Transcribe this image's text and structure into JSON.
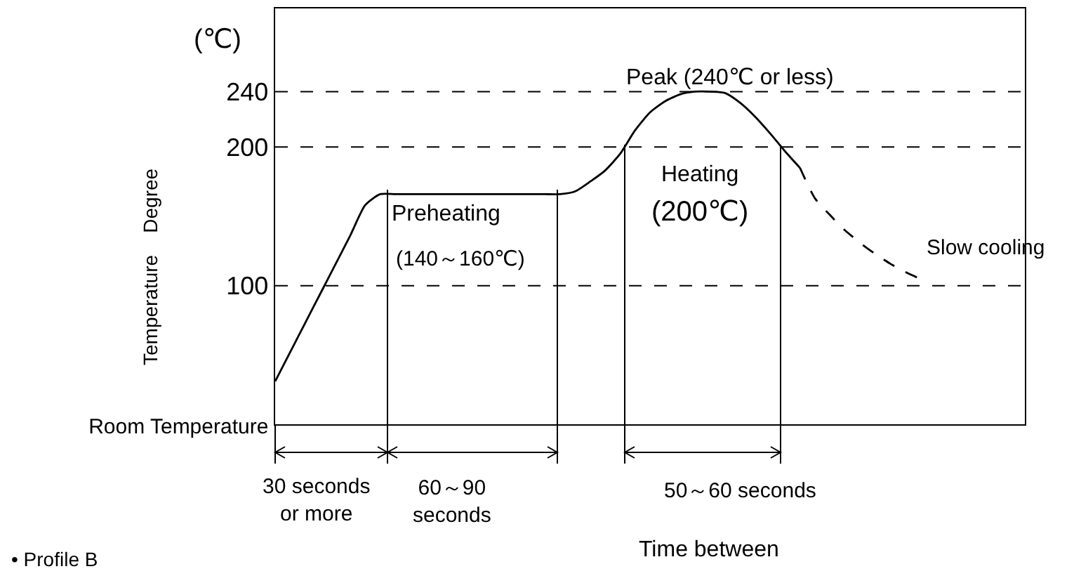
{
  "chart_data": {
    "type": "line",
    "ylabel": "Temperature  Degree",
    "xlabel": "Time between",
    "categories": [
      null,
      null,
      null,
      null,
      null,
      null,
      null,
      null,
      null,
      null,
      null,
      null,
      null,
      null,
      null,
      null,
      null,
      null,
      null,
      null,
      null,
      null,
      null,
      null,
      null,
      null,
      null,
      null,
      null,
      null,
      null,
      null,
      null,
      null,
      null,
      null,
      null,
      null,
      null,
      null,
      null,
      null,
      null,
      null,
      null,
      null,
      null,
      null,
      null,
      null,
      null
    ],
    "series": [
      {
        "color": "#000000",
        "line_style": "solid",
        "values": [
          31,
          52,
          73,
          94,
          115,
          136,
          158,
          166,
          166,
          166,
          166,
          166,
          166,
          166,
          166,
          166,
          166,
          166,
          166,
          166,
          168,
          175,
          183,
          195,
          212,
          225,
          233,
          238,
          240,
          240,
          239,
          232,
          222,
          210,
          197,
          185,
          null,
          null,
          null,
          null,
          null,
          null,
          null,
          null,
          null,
          null,
          null,
          null,
          null,
          null,
          null
        ]
      },
      {
        "color": "#000000",
        "line_style": "dashed",
        "values": [
          null,
          null,
          null,
          null,
          null,
          null,
          null,
          null,
          null,
          null,
          null,
          null,
          null,
          null,
          null,
          null,
          null,
          null,
          null,
          null,
          null,
          null,
          null,
          null,
          null,
          null,
          null,
          null,
          null,
          null,
          null,
          null,
          null,
          null,
          null,
          185,
          163,
          151,
          140,
          131,
          123,
          116,
          110,
          105,
          null,
          null,
          null,
          null,
          null,
          null,
          null
        ]
      }
    ],
    "ylim": [
      0,
      300
    ],
    "yticks": [
      {
        "value": 0,
        "label": "Room Temperature"
      },
      100,
      200,
      240
    ],
    "ref_lines": [
      {
        "axis": "y",
        "value": 100,
        "color": "#000000",
        "line_style": "dashed"
      },
      {
        "axis": "y",
        "value": 200,
        "color": "#000000",
        "line_style": "dashed"
      },
      {
        "axis": "y",
        "value": 240,
        "color": "#000000",
        "line_style": "dashed"
      }
    ],
    "grid": false,
    "marker": "none",
    "tick_labels": "y",
    "annotations": [
      "(℃)",
      "Peak (240℃ or less)",
      "Preheating",
      "(140～160℃)",
      "Heating",
      "(200℃)",
      "Slow cooling",
      "30 seconds\nor more",
      "60～90\nseconds",
      "50～60 seconds",
      "• Profile B"
    ]
  }
}
